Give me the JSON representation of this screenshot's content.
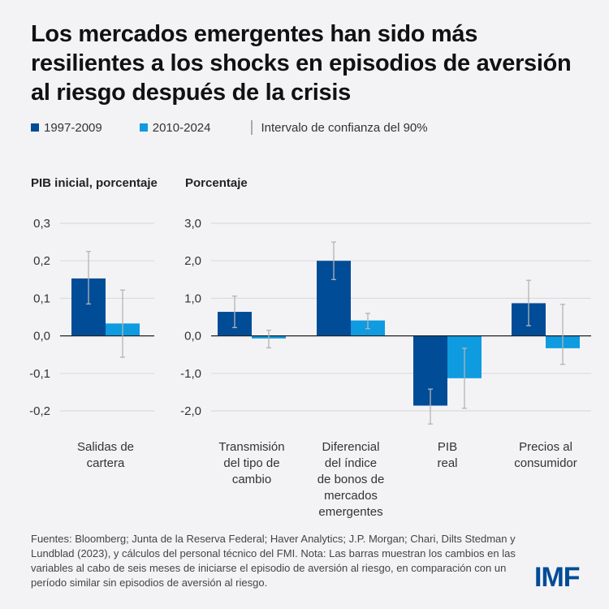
{
  "title": "Los mercados emergentes han sido más resilientes a los shocks en episodios de aversión al riesgo después de la crisis",
  "legend": {
    "series1": "1997-2009",
    "series2": "2010-2024",
    "ci": "Intervalo de confianza del 90%"
  },
  "colors": {
    "series1": "#004c97",
    "series2": "#0e9be0",
    "ci": "#b4b4b4",
    "grid": "#dcdcdf",
    "zero": "#222222"
  },
  "notes": "Fuentes: Bloomberg; Junta de la Reserva Federal; Haver Analytics; J.P. Morgan; Chari, Dilts Stedman y Lundblad (2023), y cálculos del personal técnico del FMI. Nota: Las barras muestran los cambios en las variables al cabo de seis meses de iniciarse el episodio de aversión al riesgo, en comparación con un período similar sin episodios de aversión al riesgo.",
  "logo": "IMF",
  "chart_data": [
    {
      "type": "bar",
      "title": "",
      "ylabel": "PIB inicial, porcentaje",
      "ylim": [
        -0.2,
        0.3
      ],
      "yticks": [
        0.3,
        0.2,
        0.1,
        0.0,
        -0.1,
        -0.2
      ],
      "ytick_labels": [
        "0,3",
        "0,2",
        "0,1",
        "0,0",
        "-0,1",
        "-0,2"
      ],
      "grid": true,
      "legend": "top-left",
      "categories": [
        "Salidas de\ncartera"
      ],
      "series": [
        {
          "name": "1997-2009",
          "values": [
            0.153
          ],
          "ci_low": [
            0.085
          ],
          "ci_high": [
            0.225
          ]
        },
        {
          "name": "2010-2024",
          "values": [
            0.033
          ],
          "ci_low": [
            -0.057
          ],
          "ci_high": [
            0.122
          ]
        }
      ]
    },
    {
      "type": "bar",
      "title": "",
      "ylabel": "Porcentaje",
      "ylim": [
        -2.0,
        3.0
      ],
      "yticks": [
        3.0,
        2.0,
        1.0,
        0.0,
        -1.0,
        -2.0
      ],
      "ytick_labels": [
        "3,0",
        "2,0",
        "1,0",
        "0,0",
        "-1,0",
        "-2,0"
      ],
      "grid": true,
      "categories": [
        "Transmisión\ndel tipo de\ncambio",
        "Diferencial\ndel índice\nde bonos de\nmercados\nemergentes",
        "PIB\nreal",
        "Precios al\nconsumidor"
      ],
      "series": [
        {
          "name": "1997-2009",
          "values": [
            0.64,
            2.0,
            -1.86,
            0.87
          ],
          "ci_low": [
            0.22,
            1.5,
            -2.35,
            0.27
          ],
          "ci_high": [
            1.06,
            2.5,
            -1.42,
            1.48
          ]
        },
        {
          "name": "2010-2024",
          "values": [
            -0.07,
            0.41,
            -1.13,
            -0.33
          ],
          "ci_low": [
            -0.32,
            0.19,
            -1.93,
            -0.76
          ],
          "ci_high": [
            0.15,
            0.6,
            -0.33,
            0.84
          ]
        }
      ]
    }
  ]
}
